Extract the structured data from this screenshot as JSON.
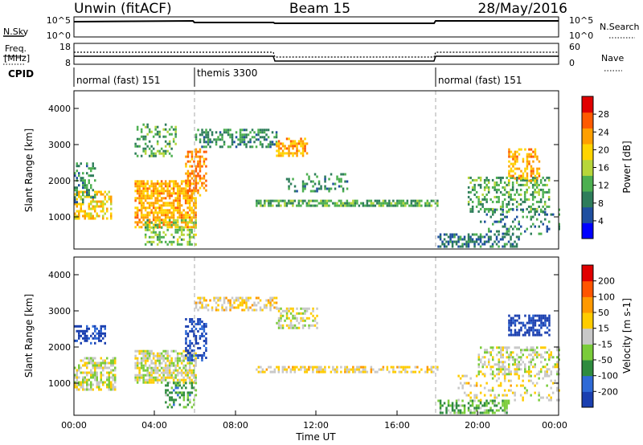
{
  "header": {
    "station": "Unwin (fitACF)",
    "beam": "Beam 15",
    "date": "28/May/2016"
  },
  "nsky_panel": {
    "label": "N.Sky",
    "left_ticks": [
      "10^5",
      "10^0"
    ],
    "right_ticks": [
      "10^5",
      "10^0"
    ],
    "right_label": "N.Search"
  },
  "freq_panel": {
    "label_line1": "Freq.",
    "label_line2": "[MHz]",
    "left_ticks": [
      "18",
      "8"
    ],
    "right_ticks": [
      "60",
      "0"
    ],
    "right_label": "Nave"
  },
  "cpid_panel": {
    "label": "CPID",
    "modes": [
      {
        "name": "normal (fast) 151",
        "start_hour": 0,
        "end_hour": 6
      },
      {
        "name": "themis 3300",
        "start_hour": 6,
        "end_hour": 18
      },
      {
        "name": "normal (fast) 151",
        "start_hour": 18,
        "end_hour": 24
      }
    ]
  },
  "colorbars": {
    "power": {
      "label": "Power [dB]",
      "ticks": [
        "28",
        "24",
        "20",
        "16",
        "12",
        "8",
        "4"
      ],
      "colors": [
        "#0000ff",
        "#1f4fa0",
        "#2e7d5b",
        "#4caf50",
        "#b7d63a",
        "#ffd400",
        "#ff9f00",
        "#ff5a00",
        "#e00000"
      ]
    },
    "velocity": {
      "label": "Velocity [m s-1]",
      "ticks": [
        "200",
        "100",
        "50",
        "15",
        "-15",
        "-50",
        "-100",
        "-200"
      ],
      "colors": [
        "#1a3fb0",
        "#2f6ad6",
        "#2e8b3e",
        "#7acc3a",
        "#c8c8c8",
        "#ffcc00",
        "#ff9900",
        "#ff5500",
        "#e00000"
      ]
    }
  },
  "axes": {
    "ylabel": "Slant Range [km]",
    "yticks": [
      "4000",
      "3000",
      "2000",
      "1000"
    ],
    "xticks": [
      "00:00",
      "04:00",
      "08:00",
      "12:00",
      "16:00",
      "20:00",
      "00:00"
    ],
    "xlabel": "Time UT"
  },
  "chart_data": [
    {
      "type": "heatmap",
      "title": "Power",
      "xlabel": "Time UT",
      "ylabel": "Slant Range [km]",
      "xlim_hours": [
        0,
        24
      ],
      "ylim_km": [
        180,
        4600
      ],
      "colorbar_label": "Power [dB]",
      "clim": [
        0,
        32
      ],
      "patches": [
        {
          "t": [
            0.0,
            1.8
          ],
          "r": [
            1000,
            1800
          ],
          "value": 20,
          "density": 0.55
        },
        {
          "t": [
            0.0,
            1.0
          ],
          "r": [
            1500,
            2600
          ],
          "value": 10,
          "density": 0.35
        },
        {
          "t": [
            3.0,
            6.0
          ],
          "r": [
            800,
            2100
          ],
          "value": 22,
          "density": 0.7
        },
        {
          "t": [
            3.5,
            6.0
          ],
          "r": [
            300,
            1000
          ],
          "value": 14,
          "density": 0.4
        },
        {
          "t": [
            3.0,
            5.0
          ],
          "r": [
            2800,
            3700
          ],
          "value": 12,
          "density": 0.35
        },
        {
          "t": [
            5.5,
            6.5
          ],
          "r": [
            1600,
            3000
          ],
          "value": 24,
          "density": 0.5
        },
        {
          "t": [
            6.0,
            10.0
          ],
          "r": [
            3050,
            3550
          ],
          "value": 10,
          "density": 0.45
        },
        {
          "t": [
            10.0,
            11.5
          ],
          "r": [
            2800,
            3300
          ],
          "value": 22,
          "density": 0.6
        },
        {
          "t": [
            9.0,
            18.0
          ],
          "r": [
            1350,
            1550
          ],
          "value": 12,
          "density": 0.7
        },
        {
          "t": [
            10.5,
            13.5
          ],
          "r": [
            1800,
            2300
          ],
          "value": 10,
          "density": 0.25
        },
        {
          "t": [
            18.0,
            22.0
          ],
          "r": [
            250,
            600
          ],
          "value": 8,
          "density": 0.5
        },
        {
          "t": [
            19.5,
            23.5
          ],
          "r": [
            1200,
            2200
          ],
          "value": 12,
          "density": 0.4
        },
        {
          "t": [
            21.5,
            23.0
          ],
          "r": [
            2100,
            3000
          ],
          "value": 22,
          "density": 0.45
        },
        {
          "t": [
            20.0,
            24.0
          ],
          "r": [
            600,
            1300
          ],
          "value": 8,
          "density": 0.2
        }
      ]
    },
    {
      "type": "heatmap",
      "title": "Velocity",
      "xlabel": "Time UT",
      "ylabel": "Slant Range [km]",
      "xlim_hours": [
        0,
        24
      ],
      "ylim_km": [
        180,
        4600
      ],
      "colorbar_label": "Velocity [m s-1]",
      "clim": [
        -200,
        200
      ],
      "patches": [
        {
          "t": [
            0.0,
            2.0
          ],
          "r": [
            900,
            1800
          ],
          "value": 0,
          "density": 0.6
        },
        {
          "t": [
            0.0,
            1.5
          ],
          "r": [
            2200,
            2700
          ],
          "value": -180,
          "density": 0.5
        },
        {
          "t": [
            3.0,
            6.0
          ],
          "r": [
            1100,
            2000
          ],
          "value": 0,
          "density": 0.7
        },
        {
          "t": [
            4.5,
            6.0
          ],
          "r": [
            400,
            1100
          ],
          "value": -70,
          "density": 0.45
        },
        {
          "t": [
            5.5,
            6.5
          ],
          "r": [
            1700,
            2900
          ],
          "value": -170,
          "density": 0.5
        },
        {
          "t": [
            6.0,
            10.0
          ],
          "r": [
            3100,
            3500
          ],
          "value": 30,
          "density": 0.45
        },
        {
          "t": [
            10.0,
            12.0
          ],
          "r": [
            2600,
            3200
          ],
          "value": 0,
          "density": 0.5
        },
        {
          "t": [
            9.0,
            18.0
          ],
          "r": [
            1350,
            1550
          ],
          "value": 30,
          "density": 0.6
        },
        {
          "t": [
            18.0,
            21.5
          ],
          "r": [
            230,
            600
          ],
          "value": -60,
          "density": 0.55
        },
        {
          "t": [
            20.0,
            24.0
          ],
          "r": [
            1300,
            2100
          ],
          "value": 0,
          "density": 0.45
        },
        {
          "t": [
            21.5,
            23.5
          ],
          "r": [
            2400,
            3000
          ],
          "value": -190,
          "density": 0.6
        },
        {
          "t": [
            19.0,
            24.0
          ],
          "r": [
            600,
            1300
          ],
          "value": 20,
          "density": 0.2
        }
      ]
    }
  ]
}
